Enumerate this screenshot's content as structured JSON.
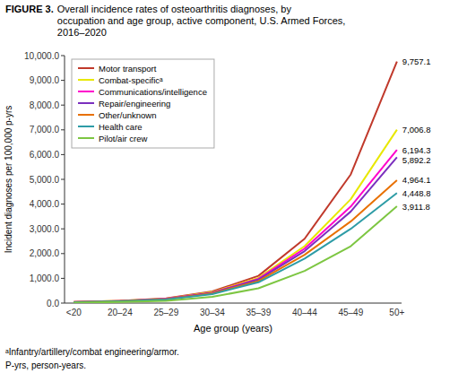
{
  "chart_data": {
    "type": "line",
    "title": "FIGURE 3.",
    "subtitle": "Overall incidence rates of osteoarthritis diagnoses, by\noccupation and age group, active component, U.S. Armed Forces,\n2016–2020",
    "x_label": "Age group (years)",
    "y_label": "Incident diagnoses per 100,000 p-yrs",
    "annotations": [
      "ᵃInfantry/artillery/combat engineering/armor.",
      "P-yrs, person-years."
    ],
    "categories": [
      "<20",
      "20–24",
      "25–29",
      "30–34",
      "35–39",
      "40–44",
      "45–49",
      "50+"
    ],
    "ylim": [
      0,
      10000
    ],
    "yticks": [
      {
        "value": 0,
        "label": "0.0"
      },
      {
        "value": 1000,
        "label": "1,000.0"
      },
      {
        "value": 2000,
        "label": "2,000.0"
      },
      {
        "value": 3000,
        "label": "3,000.0"
      },
      {
        "value": 4000,
        "label": "4,000.0"
      },
      {
        "value": 5000,
        "label": "5,000.0"
      },
      {
        "value": 6000,
        "label": "6,000.0"
      },
      {
        "value": 7000,
        "label": "7,000.0"
      },
      {
        "value": 8000,
        "label": "8,000.0"
      },
      {
        "value": 9000,
        "label": "9,000.0"
      },
      {
        "value": 10000,
        "label": "10,000.0"
      }
    ],
    "grid": false,
    "legend": "upper left",
    "data_labels": true,
    "series": [
      {
        "name": "Motor transport",
        "color": "#C0392B",
        "values": [
          48,
          95,
          190,
          470,
          1100,
          2600,
          5200,
          9757.1
        ],
        "value_labels": [
          null,
          null,
          null,
          null,
          null,
          null,
          null,
          "9,757.1"
        ]
      },
      {
        "name": "Combat-specificᵃ",
        "color": "#E8E800",
        "values": [
          44,
          88,
          175,
          440,
          1020,
          2300,
          4200,
          7006.8
        ],
        "value_labels": [
          null,
          null,
          null,
          null,
          null,
          null,
          null,
          "7,006.8"
        ]
      },
      {
        "name": "Communications/intelligence",
        "color": "#FF00CC",
        "values": [
          42,
          85,
          168,
          420,
          980,
          2200,
          3900,
          6194.3
        ],
        "value_labels": [
          null,
          null,
          null,
          null,
          null,
          null,
          null,
          "6,194.3"
        ]
      },
      {
        "name": "Repair/engineering",
        "color": "#7B2FBE",
        "values": [
          40,
          82,
          162,
          410,
          950,
          2100,
          3700,
          5892.2
        ],
        "value_labels": [
          null,
          null,
          null,
          null,
          null,
          null,
          null,
          "5,892.2"
        ]
      },
      {
        "name": "Other/unknown",
        "color": "#E87000",
        "values": [
          38,
          78,
          155,
          390,
          890,
          1950,
          3300,
          4964.1
        ],
        "value_labels": [
          null,
          null,
          null,
          null,
          null,
          null,
          null,
          "4,964.1"
        ]
      },
      {
        "name": "Health care",
        "color": "#2E9CA6",
        "values": [
          34,
          72,
          145,
          365,
          840,
          1800,
          3000,
          4448.8
        ],
        "value_labels": [
          null,
          null,
          null,
          null,
          null,
          null,
          null,
          "4,448.8"
        ]
      },
      {
        "name": "Pilot/air crew",
        "color": "#7DC642",
        "values": [
          18,
          45,
          90,
          250,
          600,
          1300,
          2300,
          3911.8
        ],
        "value_labels": [
          null,
          null,
          null,
          null,
          null,
          null,
          null,
          "3,911.8"
        ]
      }
    ]
  }
}
